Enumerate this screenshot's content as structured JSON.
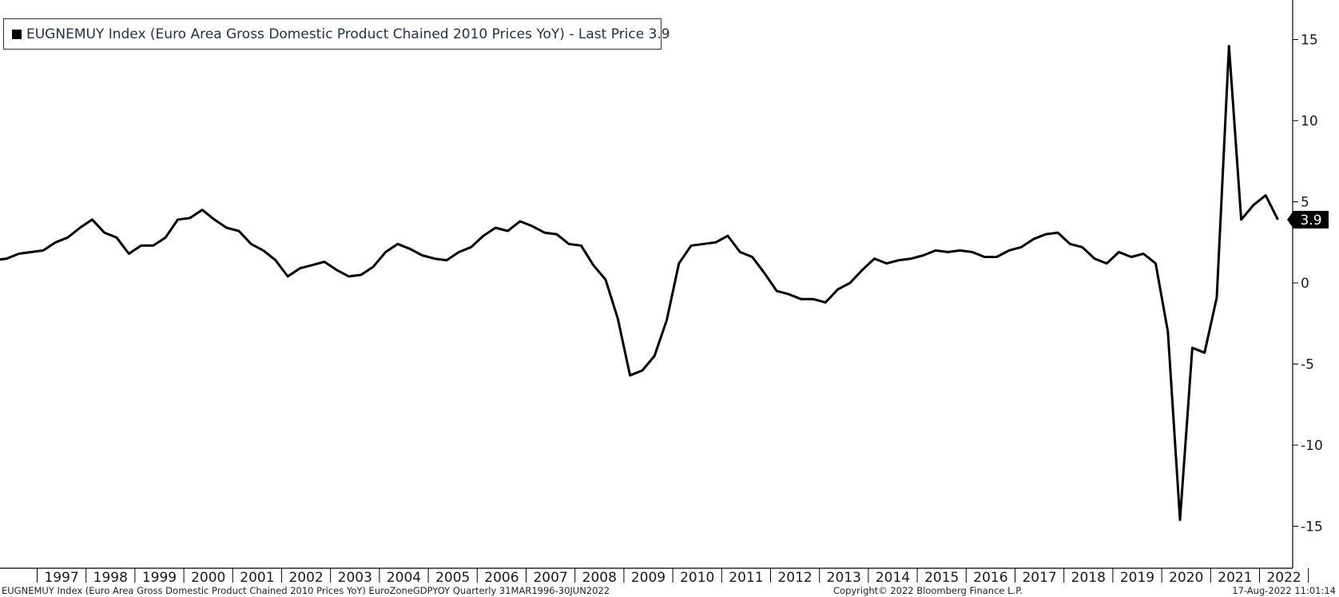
{
  "legend": {
    "text": "EUGNEMUY Index (Euro Area Gross Domestic Product Chained 2010 Prices YoY) - Last Price 3.9"
  },
  "footer": {
    "left": "EUGNEMUY Index (Euro Area Gross Domestic Product Chained 2010 Prices YoY) EuroZoneGDPYOY  Quarterly 31MAR1996-30JUN2022",
    "center": "Copyright© 2022 Bloomberg Finance L.P.",
    "right": "17-Aug-2022 11:01:14"
  },
  "chart_data": {
    "type": "line",
    "title": "",
    "xlabel": "",
    "ylabel": "",
    "ylim": [
      -17.5,
      17.5
    ],
    "y_ticks": [
      15,
      10,
      5,
      0,
      -5,
      -10,
      -15
    ],
    "x_tick_labels": [
      "1997",
      "1998",
      "1999",
      "2000",
      "2001",
      "2002",
      "2003",
      "2004",
      "2005",
      "2006",
      "2007",
      "2008",
      "2009",
      "2010",
      "2011",
      "2012",
      "2013",
      "2014",
      "2015",
      "2016",
      "2017",
      "2018",
      "2019",
      "2020",
      "2021",
      "2022"
    ],
    "last_price_label": "3.9",
    "line_color": "#000000",
    "series": [
      {
        "name": "EUGNEMUY Index",
        "x": [
          "1996-Q1",
          "1996-Q2",
          "1996-Q3",
          "1996-Q4",
          "1997-Q1",
          "1997-Q2",
          "1997-Q3",
          "1997-Q4",
          "1998-Q1",
          "1998-Q2",
          "1998-Q3",
          "1998-Q4",
          "1999-Q1",
          "1999-Q2",
          "1999-Q3",
          "1999-Q4",
          "2000-Q1",
          "2000-Q2",
          "2000-Q3",
          "2000-Q4",
          "2001-Q1",
          "2001-Q2",
          "2001-Q3",
          "2001-Q4",
          "2002-Q1",
          "2002-Q2",
          "2002-Q3",
          "2002-Q4",
          "2003-Q1",
          "2003-Q2",
          "2003-Q3",
          "2003-Q4",
          "2004-Q1",
          "2004-Q2",
          "2004-Q3",
          "2004-Q4",
          "2005-Q1",
          "2005-Q2",
          "2005-Q3",
          "2005-Q4",
          "2006-Q1",
          "2006-Q2",
          "2006-Q3",
          "2006-Q4",
          "2007-Q1",
          "2007-Q2",
          "2007-Q3",
          "2007-Q4",
          "2008-Q1",
          "2008-Q2",
          "2008-Q3",
          "2008-Q4",
          "2009-Q1",
          "2009-Q2",
          "2009-Q3",
          "2009-Q4",
          "2010-Q1",
          "2010-Q2",
          "2010-Q3",
          "2010-Q4",
          "2011-Q1",
          "2011-Q2",
          "2011-Q3",
          "2011-Q4",
          "2012-Q1",
          "2012-Q2",
          "2012-Q3",
          "2012-Q4",
          "2013-Q1",
          "2013-Q2",
          "2013-Q3",
          "2013-Q4",
          "2014-Q1",
          "2014-Q2",
          "2014-Q3",
          "2014-Q4",
          "2015-Q1",
          "2015-Q2",
          "2015-Q3",
          "2015-Q4",
          "2016-Q1",
          "2016-Q2",
          "2016-Q3",
          "2016-Q4",
          "2017-Q1",
          "2017-Q2",
          "2017-Q3",
          "2017-Q4",
          "2018-Q1",
          "2018-Q2",
          "2018-Q3",
          "2018-Q4",
          "2019-Q1",
          "2019-Q2",
          "2019-Q3",
          "2019-Q4",
          "2020-Q1",
          "2020-Q2",
          "2020-Q3",
          "2020-Q4",
          "2021-Q1",
          "2021-Q2",
          "2021-Q3",
          "2021-Q4",
          "2022-Q1",
          "2022-Q2"
        ],
        "values": [
          1.4,
          1.5,
          1.8,
          1.9,
          2.0,
          2.5,
          2.8,
          3.4,
          3.9,
          3.1,
          2.8,
          1.8,
          2.3,
          2.3,
          2.8,
          3.9,
          4.0,
          4.5,
          3.9,
          3.4,
          3.2,
          2.4,
          2.0,
          1.4,
          0.4,
          0.9,
          1.1,
          1.3,
          0.8,
          0.4,
          0.5,
          1.0,
          1.9,
          2.4,
          2.1,
          1.7,
          1.5,
          1.4,
          1.9,
          2.2,
          2.9,
          3.4,
          3.2,
          3.8,
          3.5,
          3.1,
          3.0,
          2.4,
          2.3,
          1.1,
          0.2,
          -2.2,
          -5.7,
          -5.4,
          -4.5,
          -2.3,
          1.2,
          2.3,
          2.4,
          2.5,
          2.9,
          1.9,
          1.6,
          0.6,
          -0.5,
          -0.7,
          -1.0,
          -1.0,
          -1.2,
          -0.4,
          0.0,
          0.8,
          1.5,
          1.2,
          1.4,
          1.5,
          1.7,
          2.0,
          1.9,
          2.0,
          1.9,
          1.6,
          1.6,
          2.0,
          2.2,
          2.7,
          3.0,
          3.1,
          2.4,
          2.2,
          1.5,
          1.2,
          1.9,
          1.6,
          1.8,
          1.2,
          -3.0,
          -14.6,
          -4.0,
          -4.3,
          -0.9,
          14.6,
          3.9,
          4.8,
          5.4,
          3.9
        ]
      }
    ]
  }
}
